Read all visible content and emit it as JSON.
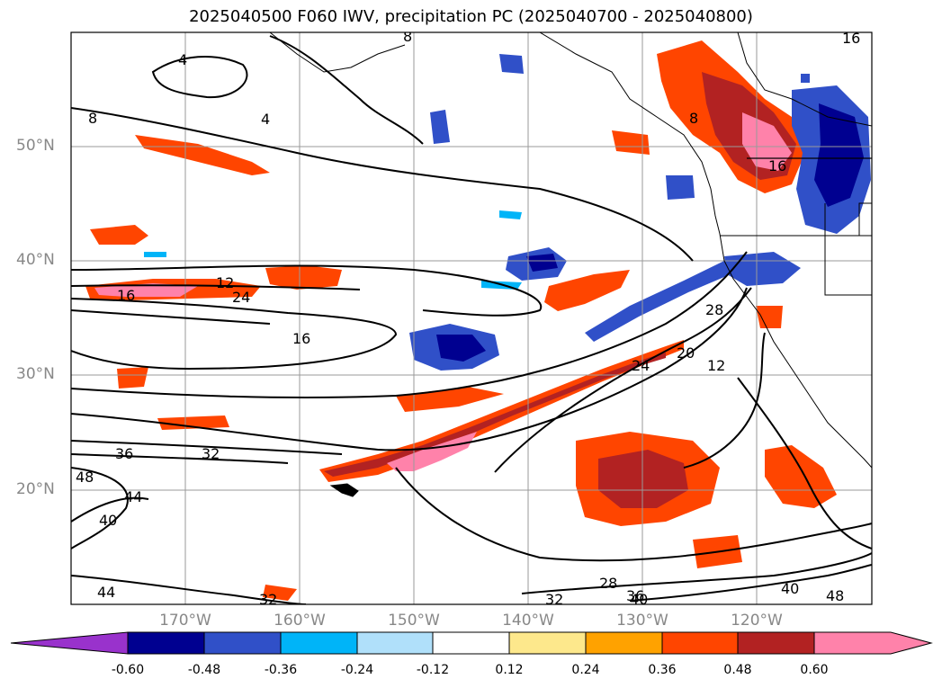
{
  "title": "2025040500 F060 IWV, precipitation PC (2025040700 - 2025040800)",
  "map": {
    "lon_range": [
      -180,
      -110
    ],
    "lat_range": [
      10,
      60
    ],
    "lat_labels": [
      "50°N",
      "40°N",
      "30°N",
      "20°N"
    ],
    "lat_values": [
      50,
      40,
      30,
      20
    ],
    "lon_labels": [
      "170°W",
      "160°W",
      "150°W",
      "140°W",
      "130°W",
      "120°W"
    ],
    "lon_values": [
      -170,
      -160,
      -150,
      -140,
      -130,
      -120
    ],
    "gridlines": true,
    "contour_variable": "IWV",
    "contour_labels": [
      "4",
      "4",
      "8",
      "8",
      "8",
      "12",
      "12",
      "16",
      "16",
      "16",
      "16",
      "20",
      "24",
      "24",
      "28",
      "28",
      "32",
      "32",
      "32",
      "36",
      "36",
      "40",
      "40",
      "44",
      "44",
      "48",
      "40",
      "48"
    ],
    "shading_variable": "precipitation PC"
  },
  "colorbar": {
    "tick_labels": [
      "-0.60",
      "-0.48",
      "-0.36",
      "-0.24",
      "-0.12",
      "0.12",
      "0.24",
      "0.36",
      "0.48",
      "0.60"
    ],
    "colors": [
      "#9932cc",
      "#000090",
      "#3050c8",
      "#00b4f8",
      "#b0e0fa",
      "#ffffff",
      "#fde88c",
      "#ffa200",
      "#ff4500",
      "#b22222",
      "#ff82aa"
    ],
    "extend": "both"
  }
}
